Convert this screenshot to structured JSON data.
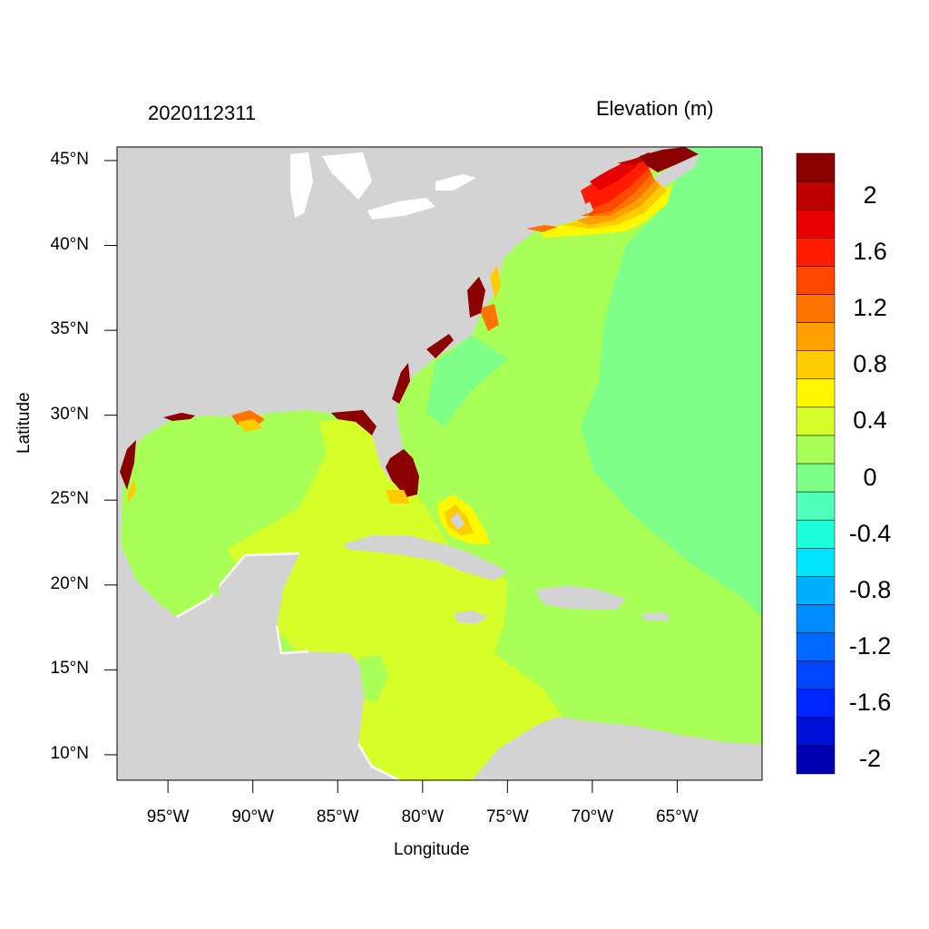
{
  "header": {
    "timestamp": "2020112311",
    "variable_title": "Elevation (m)"
  },
  "axes": {
    "xlabel": "Longitude",
    "ylabel": "Latitude",
    "lon_range": [
      -98,
      -60
    ],
    "lat_range": [
      8.5,
      45.8
    ],
    "lat_ticks": [
      {
        "value": 45,
        "label": "45°N"
      },
      {
        "value": 40,
        "label": "40°N"
      },
      {
        "value": 35,
        "label": "35°N"
      },
      {
        "value": 30,
        "label": "30°N"
      },
      {
        "value": 25,
        "label": "25°N"
      },
      {
        "value": 20,
        "label": "20°N"
      },
      {
        "value": 15,
        "label": "15°N"
      },
      {
        "value": 10,
        "label": "10°N"
      }
    ],
    "lon_ticks": [
      {
        "value": -95,
        "label": "95°W"
      },
      {
        "value": -90,
        "label": "90°W"
      },
      {
        "value": -85,
        "label": "85°W"
      },
      {
        "value": -80,
        "label": "80°W"
      },
      {
        "value": -75,
        "label": "75°W"
      },
      {
        "value": -70,
        "label": "70°W"
      },
      {
        "value": -65,
        "label": "65°W"
      }
    ]
  },
  "colorbar": {
    "colors": [
      "#0000b3",
      "#0010d9",
      "#0024ff",
      "#0046ff",
      "#0068ff",
      "#008cff",
      "#00b0ff",
      "#00e4ff",
      "#1effde",
      "#4dffb8",
      "#7dff88",
      "#a8ff55",
      "#d6ff2a",
      "#fff700",
      "#ffcc00",
      "#ffa000",
      "#ff7400",
      "#ff4800",
      "#ff1c00",
      "#e60000",
      "#bf0000",
      "#8b0000"
    ],
    "labels": [
      {
        "text": "2",
        "row": 1
      },
      {
        "text": "1.6",
        "row": 3
      },
      {
        "text": "1.2",
        "row": 5
      },
      {
        "text": "0.8",
        "row": 7
      },
      {
        "text": "0.4",
        "row": 9
      },
      {
        "text": "0",
        "row": 11
      },
      {
        "text": "-0.4",
        "row": 13
      },
      {
        "text": "-0.8",
        "row": 15
      },
      {
        "text": "-1.2",
        "row": 17
      },
      {
        "text": "-1.6",
        "row": 19
      },
      {
        "text": "-2",
        "row": 21
      }
    ]
  },
  "map": {
    "land_color": "#d3d3d3",
    "ocean_color": "#7dff88",
    "shelf_color": "#a8ff55",
    "caribbean_color": "#d6ff2a",
    "surge_colors": [
      "#8b0000",
      "#bf0000",
      "#ff1c00",
      "#ff4800",
      "#ff7400",
      "#ffcc00",
      "#fff700"
    ]
  }
}
